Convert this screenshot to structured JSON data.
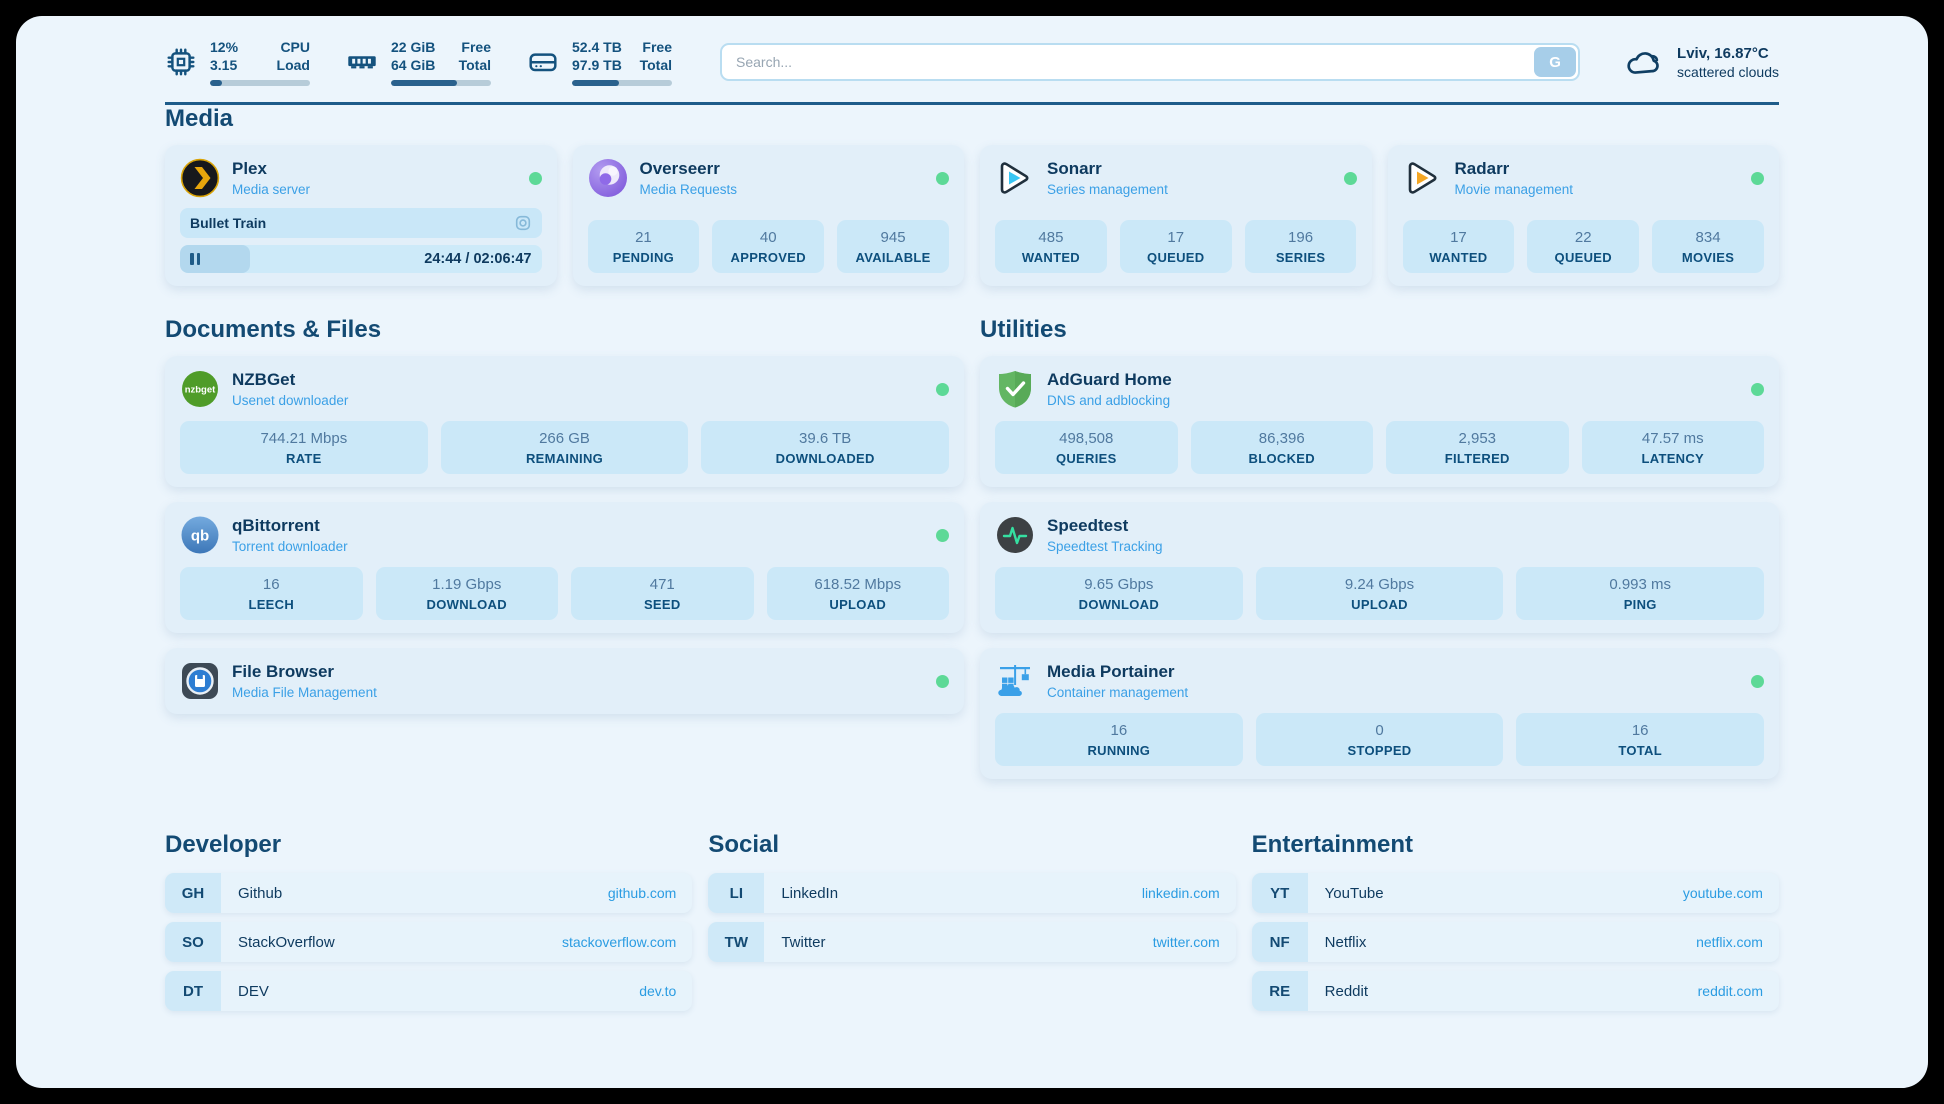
{
  "topbar": {
    "stats": [
      {
        "icon": "cpu-icon",
        "values": [
          "12%",
          "3.15"
        ],
        "labels": [
          "CPU",
          "Load"
        ],
        "percent": 12
      },
      {
        "icon": "memory-icon",
        "values": [
          "22 GiB",
          "64 GiB"
        ],
        "labels": [
          "Free",
          "Total"
        ],
        "percent": 66
      },
      {
        "icon": "disk-icon",
        "values": [
          "52.4 TB",
          "97.9 TB"
        ],
        "labels": [
          "Free",
          "Total"
        ],
        "percent": 47
      }
    ]
  },
  "search": {
    "placeholder": "Search...",
    "button": "G"
  },
  "weather": {
    "icon": "cloud-icon",
    "title": "Lviv, 16.87°C",
    "subtitle": "scattered clouds"
  },
  "sections": {
    "media": {
      "title": "Media",
      "apps": [
        {
          "id": "plex",
          "name": "Plex",
          "subtitle": "Media server",
          "icon": "plex-icon",
          "online": true,
          "now_playing": {
            "title": "Bullet Train",
            "time": "24:44 / 02:06:47",
            "progress_percent": 19.5
          }
        },
        {
          "id": "overseerr",
          "name": "Overseerr",
          "subtitle": "Media Requests",
          "icon": "overseerr-icon",
          "online": true,
          "stats": [
            {
              "value": "21",
              "label": "PENDING"
            },
            {
              "value": "40",
              "label": "APPROVED"
            },
            {
              "value": "945",
              "label": "AVAILABLE"
            }
          ]
        },
        {
          "id": "sonarr",
          "name": "Sonarr",
          "subtitle": "Series management",
          "icon": "sonarr-icon",
          "online": true,
          "stats": [
            {
              "value": "485",
              "label": "WANTED"
            },
            {
              "value": "17",
              "label": "QUEUED"
            },
            {
              "value": "196",
              "label": "SERIES"
            }
          ]
        },
        {
          "id": "radarr",
          "name": "Radarr",
          "subtitle": "Movie management",
          "icon": "radarr-icon",
          "online": true,
          "stats": [
            {
              "value": "17",
              "label": "WANTED"
            },
            {
              "value": "22",
              "label": "QUEUED"
            },
            {
              "value": "834",
              "label": "MOVIES"
            }
          ]
        }
      ]
    },
    "documents": {
      "title": "Documents & Files",
      "apps": [
        {
          "id": "nzbget",
          "name": "NZBGet",
          "subtitle": "Usenet downloader",
          "icon": "nzbget-icon",
          "online": true,
          "stats": [
            {
              "value": "744.21 Mbps",
              "label": "RATE"
            },
            {
              "value": "266 GB",
              "label": "REMAINING"
            },
            {
              "value": "39.6 TB",
              "label": "DOWNLOADED"
            }
          ]
        },
        {
          "id": "qbittorrent",
          "name": "qBittorrent",
          "subtitle": "Torrent downloader",
          "icon": "qbittorrent-icon",
          "online": true,
          "stats": [
            {
              "value": "16",
              "label": "LEECH"
            },
            {
              "value": "1.19 Gbps",
              "label": "DOWNLOAD"
            },
            {
              "value": "471",
              "label": "SEED"
            },
            {
              "value": "618.52 Mbps",
              "label": "UPLOAD"
            }
          ]
        },
        {
          "id": "filebrowser",
          "name": "File Browser",
          "subtitle": "Media File Management",
          "icon": "filebrowser-icon",
          "online": true
        }
      ]
    },
    "utilities": {
      "title": "Utilities",
      "apps": [
        {
          "id": "adguard",
          "name": "AdGuard Home",
          "subtitle": "DNS and adblocking",
          "icon": "adguard-icon",
          "online": true,
          "stats": [
            {
              "value": "498,508",
              "label": "QUERIES"
            },
            {
              "value": "86,396",
              "label": "BLOCKED"
            },
            {
              "value": "2,953",
              "label": "FILTERED"
            },
            {
              "value": "47.57 ms",
              "label": "LATENCY"
            }
          ]
        },
        {
          "id": "speedtest",
          "name": "Speedtest",
          "subtitle": "Speedtest Tracking",
          "icon": "speedtest-icon",
          "online": false,
          "stats": [
            {
              "value": "9.65 Gbps",
              "label": "DOWNLOAD"
            },
            {
              "value": "9.24 Gbps",
              "label": "UPLOAD"
            },
            {
              "value": "0.993 ms",
              "label": "PING"
            }
          ]
        },
        {
          "id": "portainer",
          "name": "Media Portainer",
          "subtitle": "Container management",
          "icon": "portainer-icon",
          "online": true,
          "stats": [
            {
              "value": "16",
              "label": "RUNNING"
            },
            {
              "value": "0",
              "label": "STOPPED"
            },
            {
              "value": "16",
              "label": "TOTAL"
            }
          ]
        }
      ]
    }
  },
  "bookmarks": [
    {
      "title": "Developer",
      "links": [
        {
          "abbr": "GH",
          "label": "Github",
          "url": "github.com"
        },
        {
          "abbr": "SO",
          "label": "StackOverflow",
          "url": "stackoverflow.com"
        },
        {
          "abbr": "DT",
          "label": "DEV",
          "url": "dev.to"
        }
      ]
    },
    {
      "title": "Social",
      "links": [
        {
          "abbr": "LI",
          "label": "LinkedIn",
          "url": "linkedin.com"
        },
        {
          "abbr": "TW",
          "label": "Twitter",
          "url": "twitter.com"
        }
      ]
    },
    {
      "title": "Entertainment",
      "links": [
        {
          "abbr": "YT",
          "label": "YouTube",
          "url": "youtube.com"
        },
        {
          "abbr": "NF",
          "label": "Netflix",
          "url": "netflix.com"
        },
        {
          "abbr": "RE",
          "label": "Reddit",
          "url": "reddit.com"
        }
      ]
    }
  ],
  "colors": {
    "accent": "#2b9ce2",
    "status_online": "#5dd997",
    "panel_bg": "#ecf5fc",
    "card_bg": "#e2eff9",
    "tile_bg": "#cbe8f8"
  }
}
